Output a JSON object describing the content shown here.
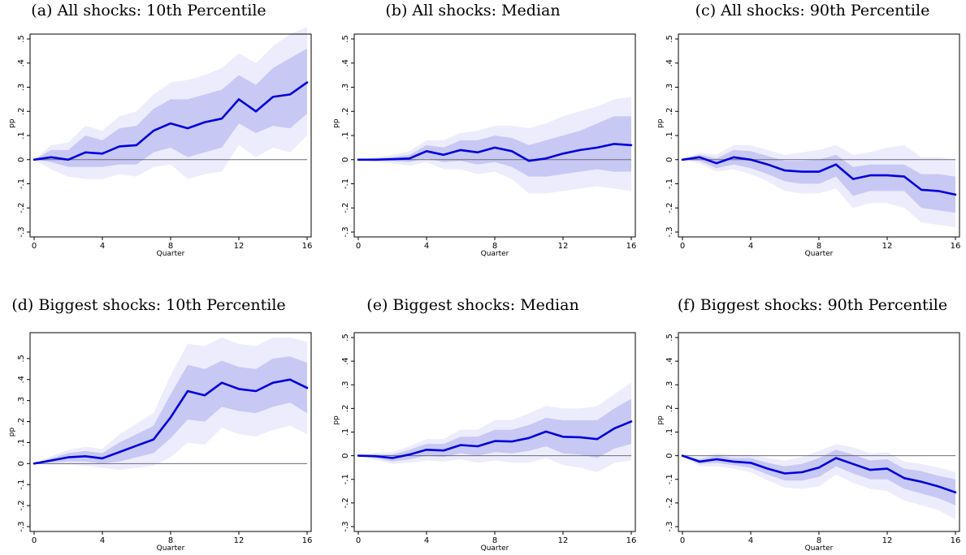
{
  "colors": {
    "line": "#0000dd",
    "band_inner": "#c8c8f4",
    "band_outer": "#ececfc",
    "zero_line": "#6b6b7a",
    "frame": "#000000"
  },
  "chart_data": [
    {
      "type": "line",
      "title": "(a) All shocks: 10th Percentile",
      "xlabel": "Quarter",
      "ylabel": "pp",
      "xlim": [
        0,
        16
      ],
      "ylim": [
        -0.3,
        0.5
      ],
      "xticks": [
        0,
        4,
        8,
        12,
        16
      ],
      "yticks": [
        -0.3,
        -0.2,
        -0.1,
        0,
        0.1,
        0.2,
        0.3,
        0.4,
        0.5
      ],
      "ytick_labels": [
        "-.3",
        "-.2",
        "-.1",
        "0",
        ".1",
        ".2",
        ".3",
        ".4",
        ".5"
      ],
      "grid": false,
      "x": [
        0,
        1,
        2,
        3,
        4,
        5,
        6,
        7,
        8,
        9,
        10,
        11,
        12,
        13,
        14,
        15,
        16
      ],
      "series": [
        {
          "values": [
            0,
            0.01,
            0,
            0.03,
            0.025,
            0.055,
            0.06,
            0.12,
            0.15,
            0.13,
            0.155,
            0.17,
            0.25,
            0.2,
            0.26,
            0.27,
            0.32
          ]
        }
      ],
      "band_inner": {
        "upper": [
          0,
          0.04,
          0.04,
          0.1,
          0.08,
          0.13,
          0.14,
          0.21,
          0.25,
          0.25,
          0.27,
          0.29,
          0.35,
          0.31,
          0.38,
          0.42,
          0.46
        ],
        "lower": [
          0,
          -0.01,
          -0.03,
          -0.03,
          -0.03,
          -0.02,
          -0.02,
          0.03,
          0.05,
          0.01,
          0.03,
          0.05,
          0.15,
          0.11,
          0.14,
          0.13,
          0.19
        ]
      },
      "band_outer": {
        "upper": [
          0,
          0.06,
          0.07,
          0.14,
          0.12,
          0.18,
          0.2,
          0.27,
          0.32,
          0.33,
          0.35,
          0.38,
          0.44,
          0.4,
          0.47,
          0.52,
          0.55
        ],
        "lower": [
          0,
          -0.04,
          -0.07,
          -0.08,
          -0.08,
          -0.06,
          -0.07,
          -0.03,
          -0.02,
          -0.08,
          -0.06,
          -0.05,
          0.06,
          0.01,
          0.05,
          0.03,
          0.1
        ]
      }
    },
    {
      "type": "line",
      "title": "(b) All shocks: Median",
      "xlabel": "Quarter",
      "ylabel": "pp",
      "xlim": [
        0,
        16
      ],
      "ylim": [
        -0.3,
        0.5
      ],
      "xticks": [
        0,
        4,
        8,
        12,
        16
      ],
      "yticks": [
        -0.3,
        -0.2,
        -0.1,
        0,
        0.1,
        0.2,
        0.3,
        0.4,
        0.5
      ],
      "ytick_labels": [
        "-.3",
        "-.2",
        "-.1",
        "0",
        ".1",
        ".2",
        ".3",
        ".4",
        ".5"
      ],
      "grid": false,
      "x": [
        0,
        1,
        2,
        3,
        4,
        5,
        6,
        7,
        8,
        9,
        10,
        11,
        12,
        13,
        14,
        15,
        16
      ],
      "series": [
        {
          "values": [
            0,
            0,
            0.002,
            0.005,
            0.035,
            0.02,
            0.04,
            0.03,
            0.05,
            0.035,
            -0.005,
            0.005,
            0.025,
            0.04,
            0.05,
            0.065,
            0.06
          ]
        }
      ],
      "band_inner": {
        "upper": [
          0,
          0.005,
          0.01,
          0.02,
          0.06,
          0.05,
          0.08,
          0.08,
          0.1,
          0.09,
          0.06,
          0.08,
          0.1,
          0.12,
          0.15,
          0.18,
          0.18
        ],
        "lower": [
          0,
          -0.005,
          -0.005,
          -0.01,
          0.005,
          -0.01,
          -0.005,
          -0.02,
          -0.01,
          -0.03,
          -0.07,
          -0.07,
          -0.06,
          -0.05,
          -0.04,
          -0.05,
          -0.05
        ]
      },
      "band_outer": {
        "upper": [
          0,
          0.01,
          0.02,
          0.035,
          0.08,
          0.08,
          0.11,
          0.12,
          0.14,
          0.14,
          0.13,
          0.15,
          0.18,
          0.2,
          0.22,
          0.25,
          0.26
        ],
        "lower": [
          0,
          -0.01,
          -0.015,
          -0.025,
          -0.01,
          -0.04,
          -0.04,
          -0.06,
          -0.05,
          -0.08,
          -0.14,
          -0.14,
          -0.13,
          -0.12,
          -0.11,
          -0.12,
          -0.13
        ]
      }
    },
    {
      "type": "line",
      "title": "(c) All shocks: 90th Percentile",
      "xlabel": "Quarter",
      "ylabel": "pp",
      "xlim": [
        0,
        16
      ],
      "ylim": [
        -0.3,
        0.5
      ],
      "xticks": [
        0,
        4,
        8,
        12,
        16
      ],
      "yticks": [
        -0.3,
        -0.2,
        -0.1,
        0,
        0.1,
        0.2,
        0.3,
        0.4,
        0.5
      ],
      "ytick_labels": [
        "-.3",
        "-.2",
        "-.1",
        "0",
        ".1",
        ".2",
        ".3",
        ".4",
        ".5"
      ],
      "grid": false,
      "x": [
        0,
        1,
        2,
        3,
        4,
        5,
        6,
        7,
        8,
        9,
        10,
        11,
        12,
        13,
        14,
        15,
        16
      ],
      "series": [
        {
          "values": [
            0,
            0.01,
            -0.015,
            0.01,
            0,
            -0.02,
            -0.045,
            -0.05,
            -0.05,
            -0.02,
            -0.08,
            -0.065,
            -0.065,
            -0.07,
            -0.125,
            -0.13,
            -0.145
          ]
        }
      ],
      "band_inner": {
        "upper": [
          0,
          0.02,
          0.005,
          0.04,
          0.035,
          0.015,
          -0.005,
          -0.005,
          0,
          0.02,
          -0.03,
          -0.02,
          -0.02,
          -0.02,
          -0.06,
          -0.06,
          -0.07
        ],
        "lower": [
          0,
          -0.005,
          -0.035,
          -0.02,
          -0.035,
          -0.06,
          -0.09,
          -0.1,
          -0.1,
          -0.07,
          -0.15,
          -0.13,
          -0.13,
          -0.13,
          -0.2,
          -0.21,
          -0.22
        ]
      },
      "band_outer": {
        "upper": [
          0,
          0.03,
          0.02,
          0.06,
          0.06,
          0.04,
          0.02,
          0.03,
          0.04,
          0.06,
          0.02,
          0.03,
          0.05,
          0.06,
          0.01,
          0.01,
          0
        ],
        "lower": [
          0,
          -0.015,
          -0.05,
          -0.04,
          -0.06,
          -0.09,
          -0.13,
          -0.14,
          -0.14,
          -0.12,
          -0.2,
          -0.18,
          -0.18,
          -0.2,
          -0.26,
          -0.27,
          -0.28
        ]
      }
    },
    {
      "type": "line",
      "title": "(d) Biggest shocks: 10th Percentile",
      "xlabel": "Quarter",
      "ylabel": "pp",
      "xlim": [
        0,
        16
      ],
      "ylim": [
        -0.3,
        0.6
      ],
      "xticks": [
        0,
        4,
        8,
        12,
        16
      ],
      "yticks": [
        -0.3,
        -0.2,
        -0.1,
        0,
        0.1,
        0.2,
        0.3,
        0.4,
        0.5
      ],
      "ytick_labels": [
        "-.3",
        "-.2",
        "-.1",
        "0",
        ".1",
        ".2",
        ".3",
        ".4",
        ".5"
      ],
      "grid": false,
      "x": [
        0,
        1,
        2,
        3,
        4,
        5,
        6,
        7,
        8,
        9,
        10,
        11,
        12,
        13,
        14,
        15,
        16
      ],
      "series": [
        {
          "values": [
            0,
            0.015,
            0.03,
            0.035,
            0.025,
            0.055,
            0.085,
            0.115,
            0.22,
            0.345,
            0.325,
            0.385,
            0.355,
            0.345,
            0.385,
            0.4,
            0.36
          ]
        }
      ],
      "band_inner": {
        "upper": [
          0,
          0.025,
          0.05,
          0.06,
          0.05,
          0.1,
          0.14,
          0.18,
          0.33,
          0.47,
          0.45,
          0.49,
          0.46,
          0.45,
          0.5,
          0.51,
          0.48
        ],
        "lower": [
          0,
          0.005,
          0.01,
          0.01,
          0,
          0.01,
          0.03,
          0.05,
          0.12,
          0.21,
          0.2,
          0.27,
          0.25,
          0.24,
          0.27,
          0.29,
          0.24
        ]
      },
      "band_outer": {
        "upper": [
          0,
          0.035,
          0.065,
          0.08,
          0.07,
          0.14,
          0.19,
          0.24,
          0.42,
          0.57,
          0.56,
          0.6,
          0.57,
          0.56,
          0.6,
          0.6,
          0.58
        ],
        "lower": [
          0,
          -0.005,
          -0.005,
          -0.01,
          -0.02,
          -0.03,
          -0.02,
          -0.01,
          0.03,
          0.1,
          0.09,
          0.17,
          0.14,
          0.13,
          0.16,
          0.18,
          0.14
        ]
      }
    },
    {
      "type": "line",
      "title": "(e) Biggest shocks: Median",
      "xlabel": "Quarter",
      "ylabel": "pp",
      "xlim": [
        0,
        16
      ],
      "ylim": [
        -0.3,
        0.5
      ],
      "xticks": [
        0,
        4,
        8,
        12,
        16
      ],
      "yticks": [
        -0.3,
        -0.2,
        -0.1,
        0,
        0.1,
        0.2,
        0.3,
        0.4,
        0.5
      ],
      "ytick_labels": [
        "-.3",
        "-.2",
        "-.1",
        "0",
        ".1",
        ".2",
        ".3",
        ".4",
        ".5"
      ],
      "grid": false,
      "x": [
        0,
        1,
        2,
        3,
        4,
        5,
        6,
        7,
        8,
        9,
        10,
        11,
        12,
        13,
        14,
        15,
        16
      ],
      "series": [
        {
          "values": [
            0,
            -0.002,
            -0.01,
            0.005,
            0.025,
            0.022,
            0.045,
            0.04,
            0.062,
            0.06,
            0.075,
            0.102,
            0.08,
            0.078,
            0.07,
            0.115,
            0.145
          ]
        }
      ],
      "band_inner": {
        "upper": [
          0,
          0.005,
          0.005,
          0.025,
          0.05,
          0.05,
          0.08,
          0.08,
          0.11,
          0.11,
          0.13,
          0.16,
          0.15,
          0.15,
          0.15,
          0.2,
          0.24
        ],
        "lower": [
          0,
          -0.01,
          -0.025,
          -0.015,
          0,
          -0.005,
          0.01,
          0,
          0.015,
          0.01,
          0.02,
          0.04,
          0.01,
          0.005,
          -0.01,
          0.03,
          0.05
        ]
      },
      "band_outer": {
        "upper": [
          0,
          0.012,
          0.015,
          0.04,
          0.07,
          0.07,
          0.11,
          0.11,
          0.15,
          0.15,
          0.18,
          0.21,
          0.2,
          0.2,
          0.21,
          0.26,
          0.31
        ],
        "lower": [
          0,
          -0.018,
          -0.035,
          -0.03,
          -0.02,
          -0.025,
          -0.015,
          -0.03,
          -0.02,
          -0.03,
          -0.03,
          -0.01,
          -0.04,
          -0.05,
          -0.07,
          -0.03,
          -0.02
        ]
      }
    },
    {
      "type": "line",
      "title": "(f) Biggest shocks: 90th Percentile",
      "xlabel": "Quarter",
      "ylabel": "pp",
      "xlim": [
        0,
        16
      ],
      "ylim": [
        -0.3,
        0.5
      ],
      "xticks": [
        0,
        4,
        8,
        12,
        16
      ],
      "yticks": [
        -0.3,
        -0.2,
        -0.1,
        0,
        0.1,
        0.2,
        0.3,
        0.4,
        0.5
      ],
      "ytick_labels": [
        "-.3",
        "-.2",
        "-.1",
        "0",
        ".1",
        ".2",
        ".3",
        ".4",
        ".5"
      ],
      "grid": false,
      "x": [
        0,
        1,
        2,
        3,
        4,
        5,
        6,
        7,
        8,
        9,
        10,
        11,
        12,
        13,
        14,
        15,
        16
      ],
      "series": [
        {
          "values": [
            0,
            -0.025,
            -0.015,
            -0.025,
            -0.03,
            -0.055,
            -0.075,
            -0.07,
            -0.05,
            -0.01,
            -0.035,
            -0.06,
            -0.055,
            -0.095,
            -0.11,
            -0.13,
            -0.155
          ]
        }
      ],
      "band_inner": {
        "upper": [
          0,
          -0.015,
          0,
          -0.01,
          -0.01,
          -0.03,
          -0.045,
          -0.035,
          -0.01,
          0.025,
          0.005,
          -0.02,
          -0.015,
          -0.055,
          -0.065,
          -0.085,
          -0.1
        ],
        "lower": [
          0,
          -0.035,
          -0.03,
          -0.04,
          -0.05,
          -0.08,
          -0.105,
          -0.105,
          -0.09,
          -0.045,
          -0.075,
          -0.1,
          -0.1,
          -0.14,
          -0.16,
          -0.18,
          -0.21
        ]
      },
      "band_outer": {
        "upper": [
          0,
          -0.005,
          0.01,
          0.005,
          0.005,
          -0.01,
          -0.02,
          -0.005,
          0.02,
          0.05,
          0.035,
          0.01,
          0.015,
          -0.025,
          -0.035,
          -0.05,
          -0.07
        ],
        "lower": [
          0,
          -0.045,
          -0.045,
          -0.055,
          -0.07,
          -0.105,
          -0.135,
          -0.14,
          -0.13,
          -0.08,
          -0.115,
          -0.14,
          -0.15,
          -0.19,
          -0.21,
          -0.23,
          -0.27
        ]
      }
    }
  ]
}
